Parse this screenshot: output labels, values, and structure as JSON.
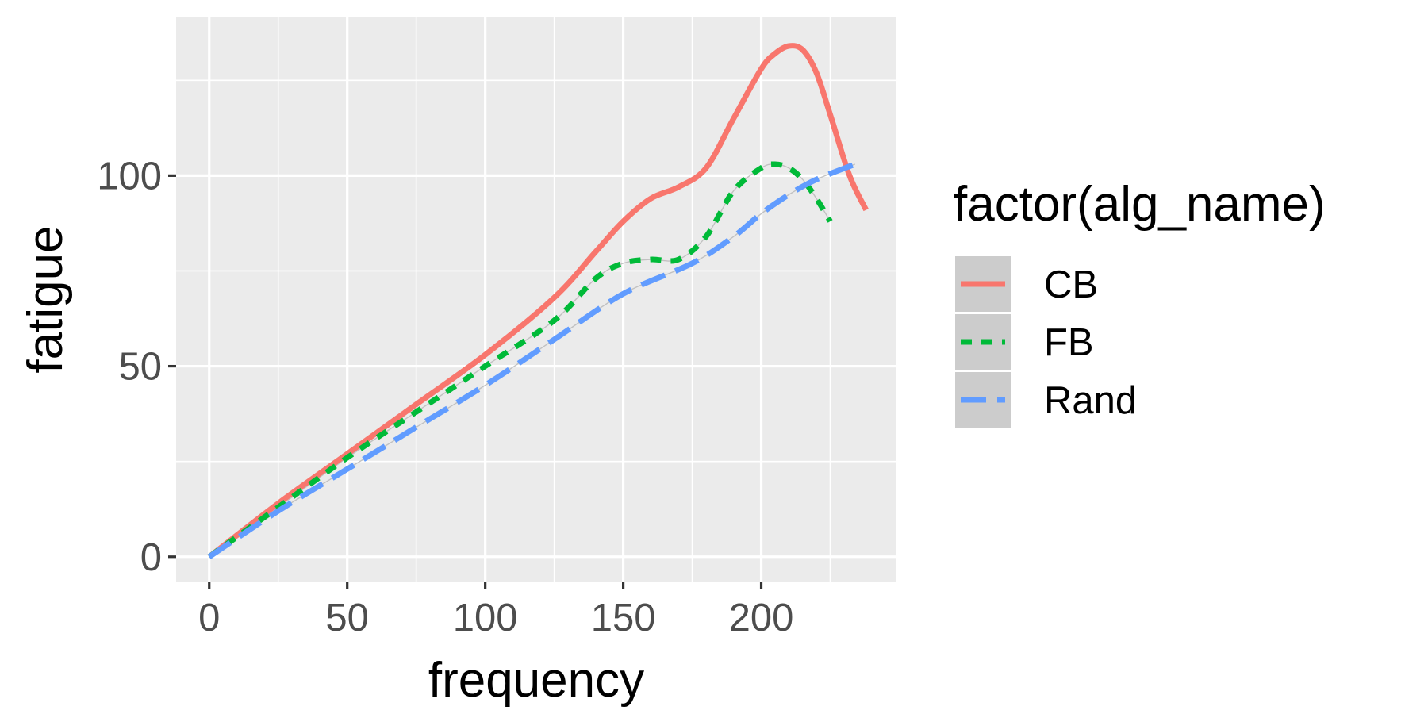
{
  "chart_data": {
    "type": "line",
    "xlabel": "frequency",
    "ylabel": "fatigue",
    "xlim": [
      -12,
      249
    ],
    "ylim": [
      -6.5,
      141.5
    ],
    "x_ticks": [
      0,
      50,
      100,
      150,
      200
    ],
    "y_ticks": [
      0,
      50,
      100
    ],
    "x_minor_ticks": [
      25,
      75,
      125,
      175,
      225
    ],
    "y_minor_ticks": [
      25,
      75,
      125
    ],
    "grid": true,
    "legend": {
      "title": "factor(alg_name)",
      "position": "right",
      "entries": [
        "CB",
        "FB",
        "Rand"
      ]
    },
    "series": [
      {
        "name": "CB",
        "color": "#F8766D",
        "dash": "solid",
        "x": [
          0,
          25,
          50,
          75,
          100,
          125,
          140,
          150,
          160,
          170,
          180,
          190,
          200,
          205,
          210,
          215,
          220,
          225,
          232,
          238
        ],
        "y": [
          0,
          14,
          27,
          40,
          53,
          68,
          80,
          88,
          94,
          97,
          102,
          115,
          128,
          132,
          134,
          133,
          127,
          116,
          100,
          91
        ]
      },
      {
        "name": "FB",
        "color": "#00BA38",
        "dash": "dashed",
        "x": [
          0,
          25,
          50,
          75,
          100,
          125,
          140,
          150,
          160,
          170,
          180,
          190,
          200,
          205,
          210,
          215,
          220,
          225
        ],
        "y": [
          0,
          13,
          26,
          38,
          50,
          62,
          73,
          77,
          78,
          78,
          84,
          96,
          102,
          103,
          102,
          99,
          94,
          88
        ]
      },
      {
        "name": "Rand",
        "color": "#619CFF",
        "dash": "longdash",
        "x": [
          0,
          25,
          50,
          75,
          100,
          125,
          150,
          175,
          190,
          200,
          210,
          220,
          234
        ],
        "y": [
          0,
          12,
          23,
          34,
          45,
          57,
          69,
          77,
          84,
          90,
          95,
          99,
          103
        ]
      }
    ]
  }
}
